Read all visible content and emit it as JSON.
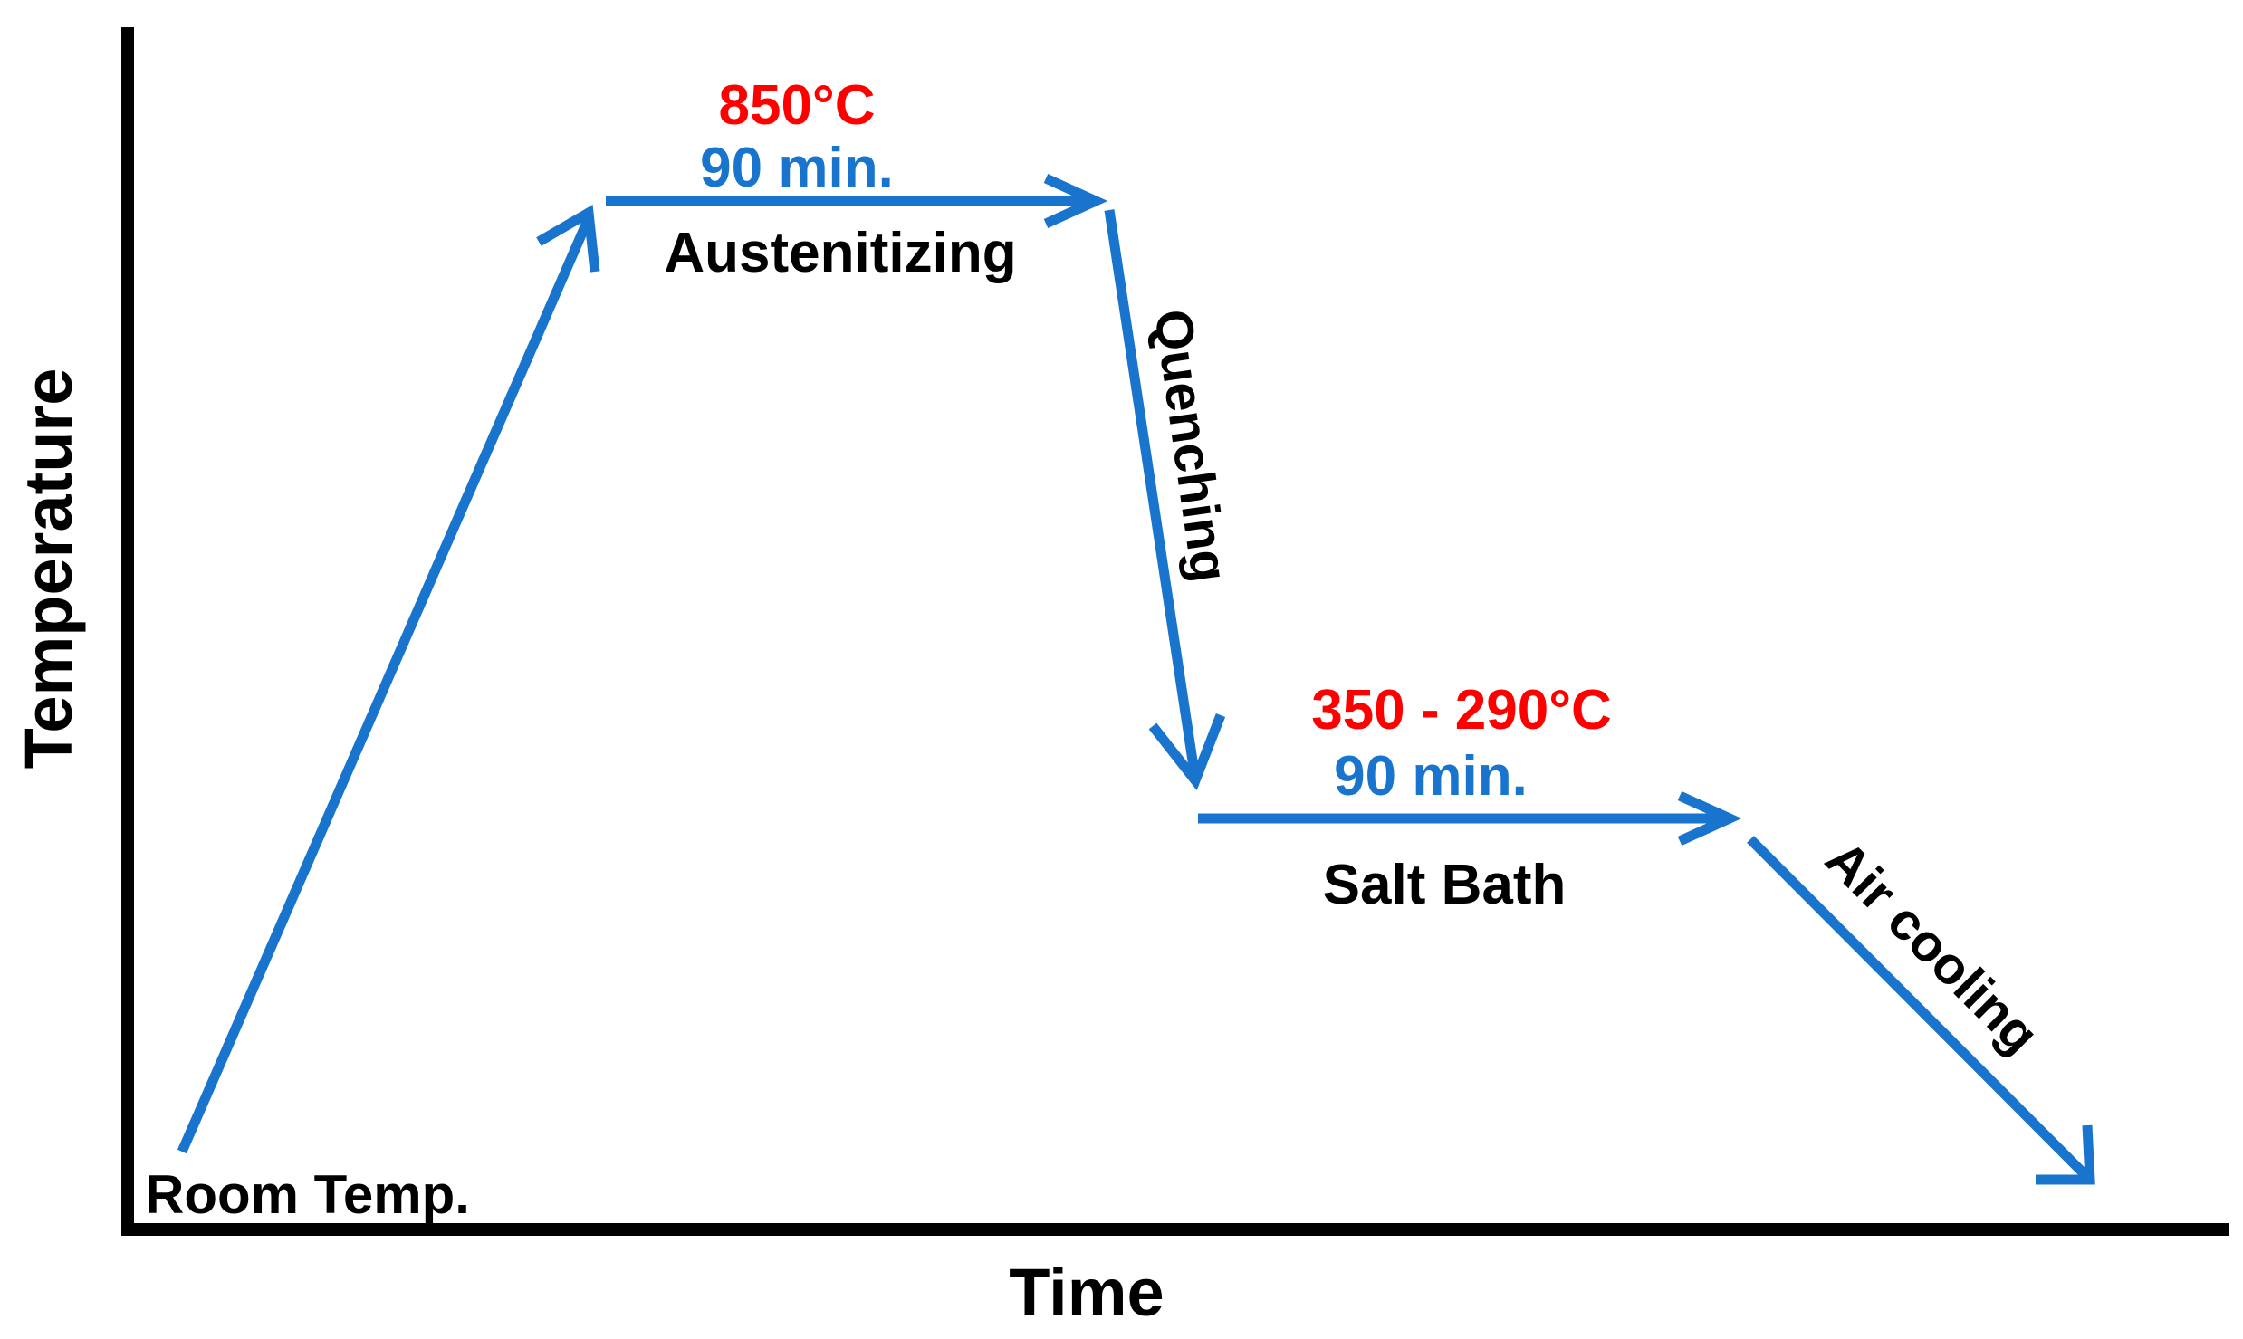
{
  "axes": {
    "x_label": "Time",
    "y_label": "Temperature"
  },
  "labels": {
    "room_temp": "Room Temp.",
    "austenitizing": {
      "temperature": "850°C",
      "duration": "90 min.",
      "name": "Austenitizing"
    },
    "quenching": "Quenching",
    "salt_bath": {
      "temperature": "350 - 290°C",
      "duration": "90 min.",
      "name": "Salt Bath"
    },
    "air_cooling": "Air cooling"
  },
  "colors": {
    "arrow": "#1874CD",
    "temperature_text": "#FF0000",
    "duration_text": "#1874CD",
    "axis": "#000000",
    "label_text": "#000000"
  }
}
